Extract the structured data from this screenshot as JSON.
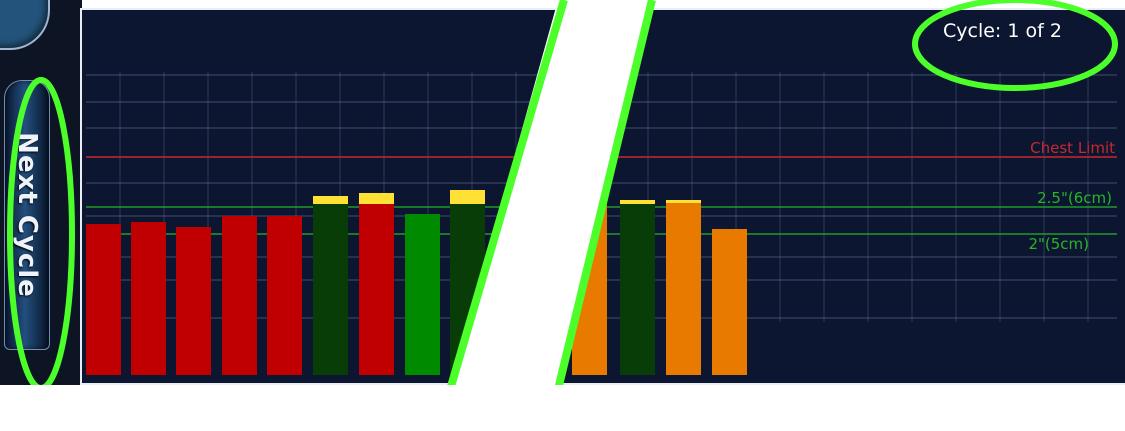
{
  "nav": {
    "next_cycle_label": "Next Cycle"
  },
  "status": {
    "cycle_counter": "Cycle: 1 of 2"
  },
  "thresholds": {
    "chest_limit": "Chest Limit",
    "depth_upper": "2.5\"(6cm)",
    "depth_lower": "2\"(5cm)"
  },
  "colors": {
    "red": "#c00000",
    "dark_green": "#083d08",
    "green": "#008a00",
    "orange": "#e87a00",
    "yellow_cap": "#ffe136",
    "chest_line": "#c8282e",
    "green_line": "#27b427",
    "highlight": "#4cff2a"
  },
  "compressions": [
    {
      "color": "red"
    },
    {
      "color": "red"
    },
    {
      "color": "red"
    },
    {
      "color": "red"
    },
    {
      "color": "red"
    },
    {
      "color": "dark_green",
      "cap": true
    },
    {
      "color": "red",
      "cap": true
    },
    {
      "color": "green"
    },
    {
      "color": "dark_green",
      "cap": true
    },
    {
      "color": "orange"
    },
    {
      "color": "dark_green",
      "cap": true
    },
    {
      "color": "orange",
      "cap": true
    },
    {
      "color": "orange"
    }
  ]
}
